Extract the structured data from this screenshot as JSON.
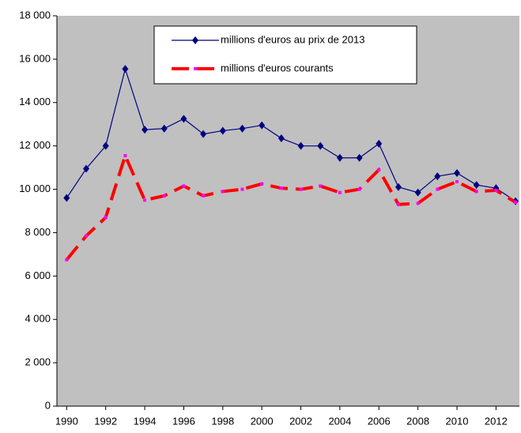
{
  "chart_data": {
    "type": "line",
    "x": [
      1990,
      1991,
      1992,
      1993,
      1994,
      1995,
      1996,
      1997,
      1998,
      1999,
      2000,
      2001,
      2002,
      2003,
      2004,
      2005,
      2006,
      2007,
      2008,
      2009,
      2010,
      2011,
      2012,
      2013
    ],
    "series": [
      {
        "name": "millions d'euros au prix de 2013",
        "color": "#000080",
        "marker": "diamond",
        "dashed": false,
        "values": [
          9600,
          10950,
          12000,
          15550,
          12750,
          12800,
          13250,
          12550,
          12700,
          12800,
          12950,
          12350,
          12000,
          12000,
          11450,
          11450,
          12100,
          10100,
          9850,
          10600,
          10750,
          10200,
          10050,
          9450
        ]
      },
      {
        "name": "millions d'euros courants",
        "color": "#ff0000",
        "marker_color": "#ff00ff",
        "marker": "square",
        "dashed": true,
        "values": [
          6750,
          7850,
          8700,
          11550,
          9500,
          9700,
          10150,
          9700,
          9900,
          10000,
          10250,
          10050,
          10000,
          10150,
          9850,
          10000,
          10900,
          9300,
          9350,
          10000,
          10350,
          9900,
          9950,
          9400
        ]
      }
    ],
    "xlim": [
      1989.5,
      2013.2
    ],
    "xticks": [
      1990,
      1992,
      1994,
      1996,
      1998,
      2000,
      2002,
      2004,
      2006,
      2008,
      2010,
      2012
    ],
    "ylim": [
      0,
      18000
    ],
    "yticks": [
      0,
      {
        "value": 2000,
        "label": "2 000"
      },
      {
        "value": 4000,
        "label": "4 000"
      },
      {
        "value": 6000,
        "label": "6 000"
      },
      {
        "value": 8000,
        "label": "8 000"
      },
      {
        "value": 10000,
        "label": "10 000"
      },
      {
        "value": 12000,
        "label": "12 000"
      },
      {
        "value": 14000,
        "label": "14 000"
      },
      {
        "value": 16000,
        "label": "16 000"
      },
      {
        "value": 18000,
        "label": "18 000"
      }
    ],
    "plot_background": "#c0c0c0",
    "grid": false,
    "legend": "top"
  }
}
